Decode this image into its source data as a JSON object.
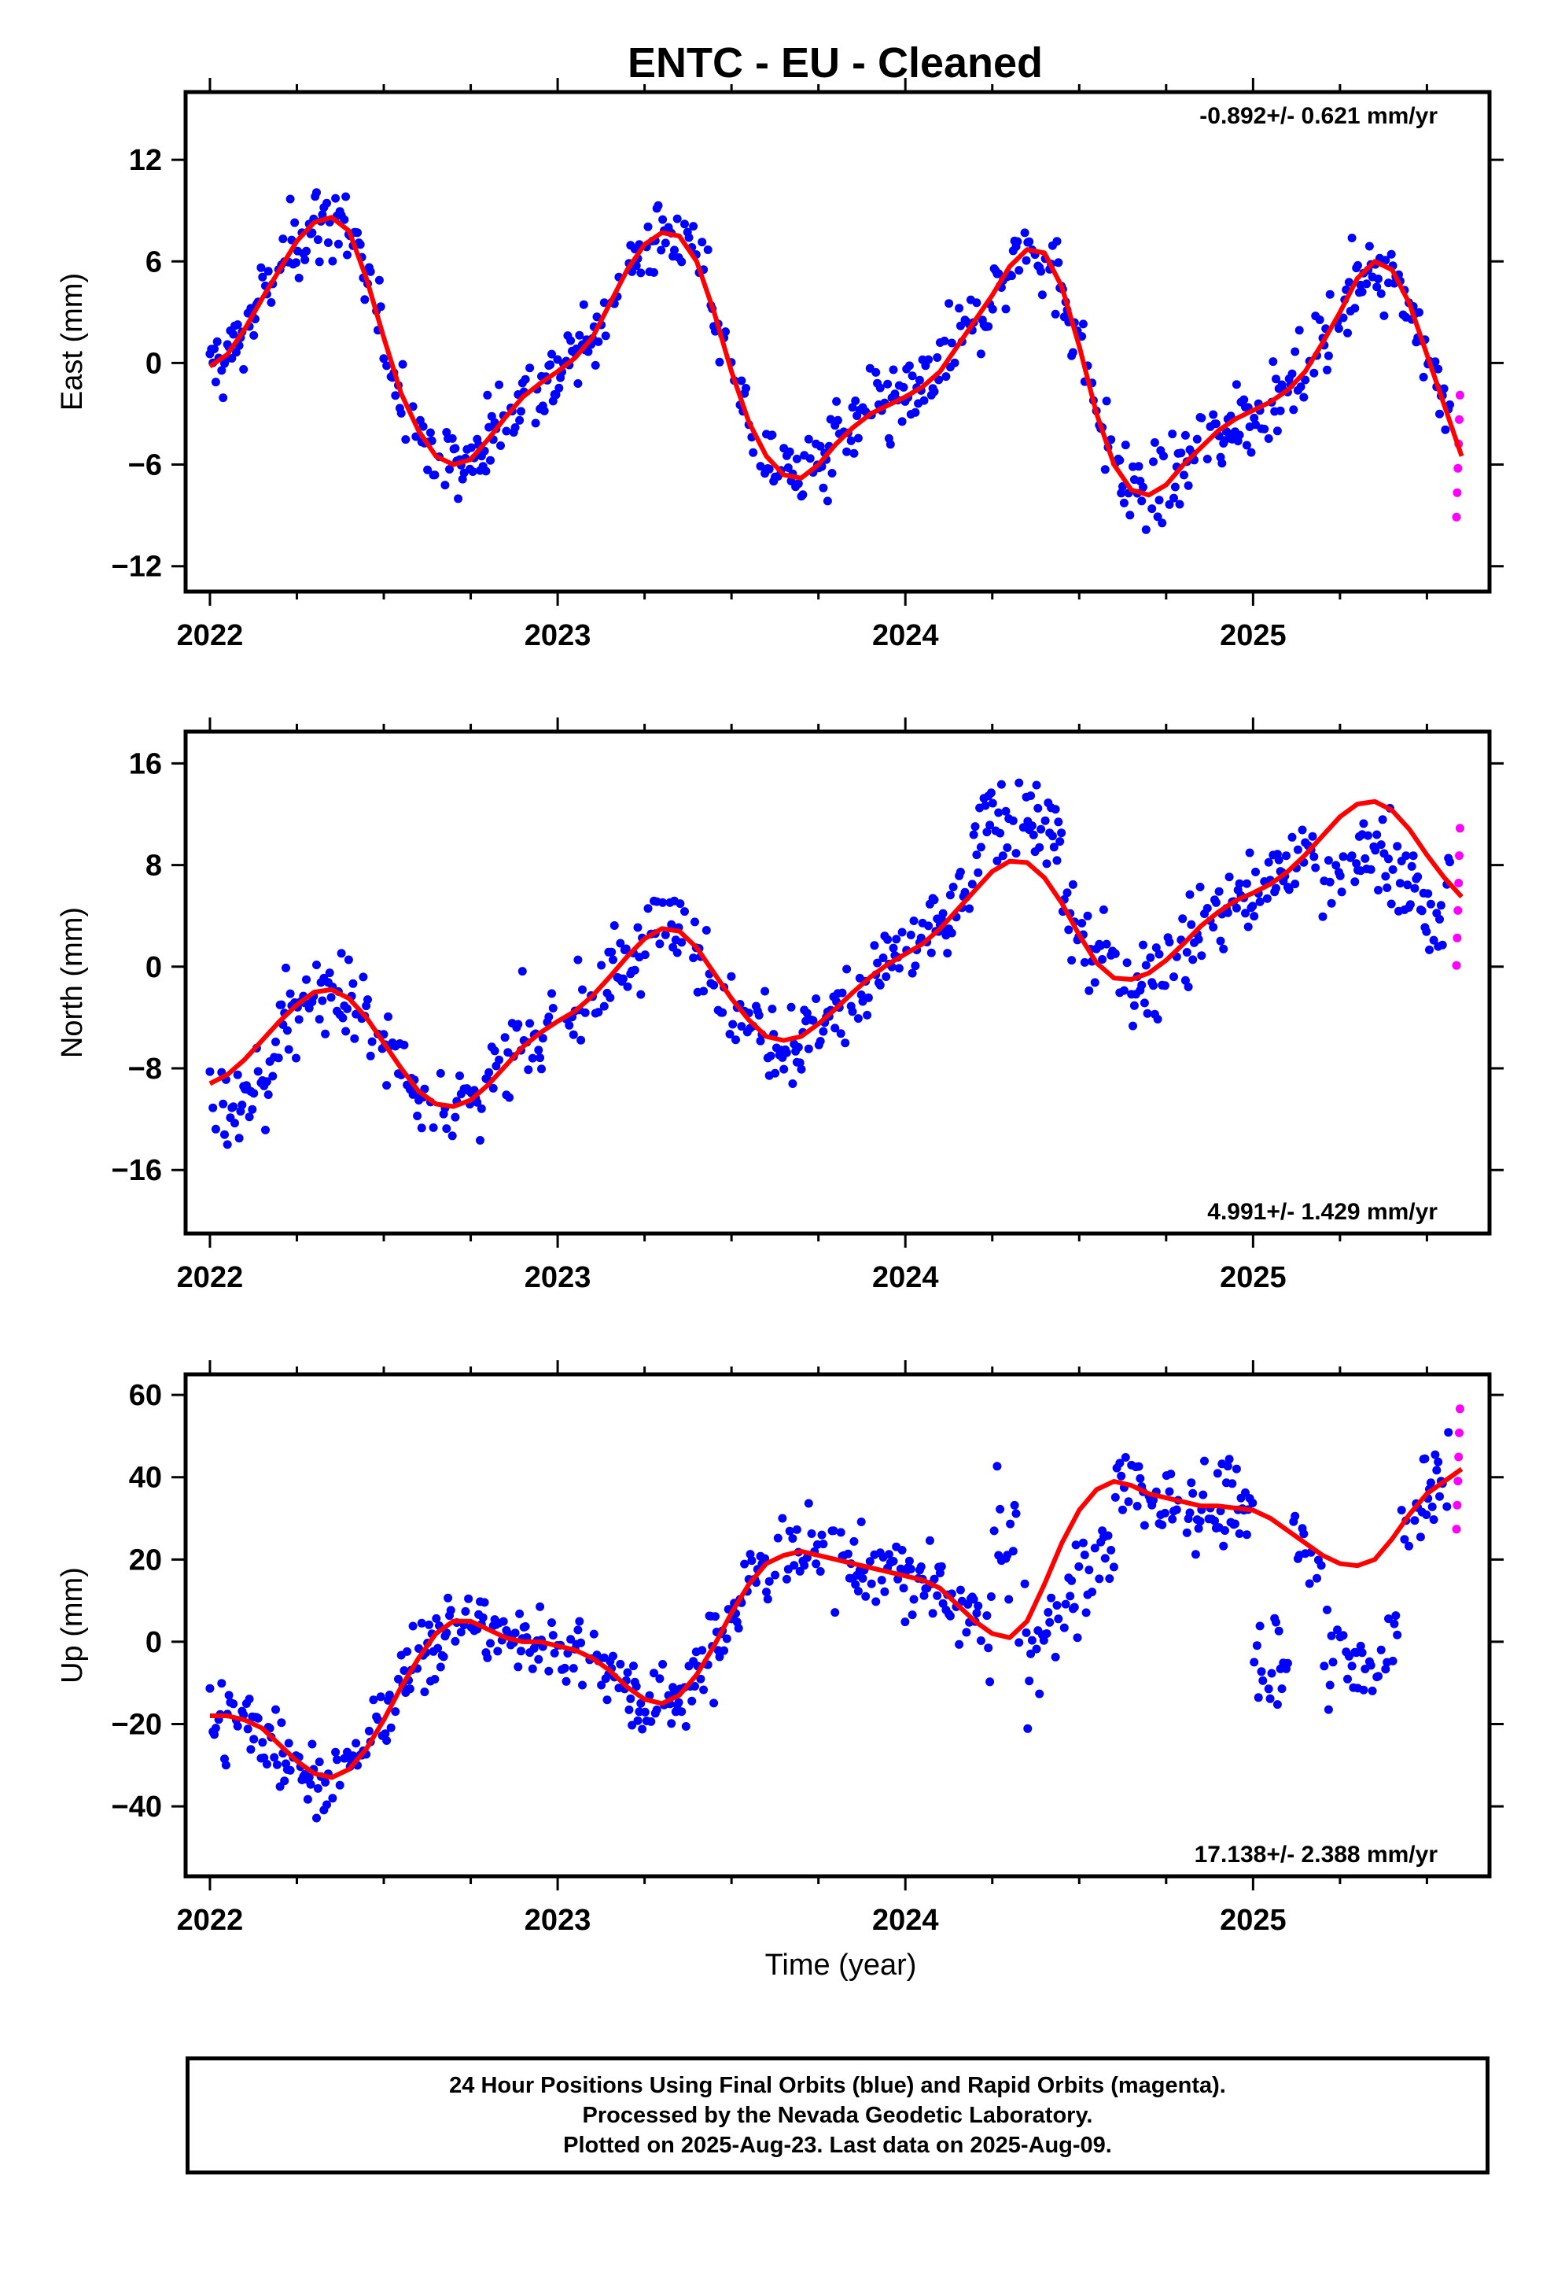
{
  "title": "ENTC  - EU - Cleaned",
  "chart_data": [
    {
      "type": "scatter",
      "name": "east",
      "ylabel": "East (mm)",
      "xlabel": "",
      "xlim": [
        2021.93,
        2025.68
      ],
      "ylim": [
        -13.5,
        16.0
      ],
      "xticks": [
        2022,
        2023,
        2024,
        2025
      ],
      "yticks": [
        -12,
        -6,
        0,
        6,
        12
      ],
      "rate_text": "-0.892+/- 0.621 mm/yr",
      "rate_position": "top-right",
      "fit_curve": {
        "x": [
          2022.0,
          2022.05,
          2022.1,
          2022.15,
          2022.2,
          2022.25,
          2022.3,
          2022.35,
          2022.4,
          2022.45,
          2022.5,
          2022.55,
          2022.6,
          2022.65,
          2022.7,
          2022.75,
          2022.8,
          2022.85,
          2022.9,
          2022.95,
          2023.0,
          2023.05,
          2023.1,
          2023.15,
          2023.2,
          2023.25,
          2023.3,
          2023.35,
          2023.4,
          2023.45,
          2023.5,
          2023.55,
          2023.6,
          2023.65,
          2023.7,
          2023.75,
          2023.8,
          2023.85,
          2023.9,
          2023.95,
          2024.0,
          2024.05,
          2024.1,
          2024.15,
          2024.2,
          2024.25,
          2024.3,
          2024.35,
          2024.4,
          2024.45,
          2024.5,
          2024.55,
          2024.6,
          2024.65,
          2024.7,
          2024.75,
          2024.8,
          2024.85,
          2024.9,
          2024.95,
          2025.0,
          2025.05,
          2025.1,
          2025.15,
          2025.2,
          2025.25,
          2025.3,
          2025.35,
          2025.4,
          2025.45,
          2025.5,
          2025.55,
          2025.6
        ],
        "y": [
          -0.2,
          0.5,
          2.0,
          3.8,
          5.5,
          7.2,
          8.3,
          8.6,
          7.8,
          5.0,
          1.5,
          -1.8,
          -4.0,
          -5.5,
          -6.0,
          -5.7,
          -4.5,
          -3.2,
          -2.0,
          -1.2,
          -0.5,
          0.3,
          1.5,
          3.5,
          5.5,
          7.0,
          7.7,
          7.5,
          6.0,
          3.0,
          -0.5,
          -3.5,
          -5.5,
          -6.6,
          -6.8,
          -6.0,
          -4.8,
          -3.8,
          -3.0,
          -2.5,
          -2.0,
          -1.4,
          -0.5,
          1.0,
          2.5,
          4.0,
          5.7,
          6.7,
          6.5,
          4.5,
          1.0,
          -3.0,
          -6.0,
          -7.5,
          -7.8,
          -7.2,
          -6.0,
          -5.0,
          -4.0,
          -3.3,
          -2.8,
          -2.3,
          -1.6,
          -0.5,
          1.2,
          3.0,
          5.0,
          6.0,
          5.5,
          3.5,
          0.5,
          -2.5,
          -5.5
        ]
      }
    },
    {
      "type": "scatter",
      "name": "north",
      "ylabel": "North (mm)",
      "xlabel": "",
      "xlim": [
        2021.93,
        2025.68
      ],
      "ylim": [
        -21.0,
        18.5
      ],
      "xticks": [
        2022,
        2023,
        2024,
        2025
      ],
      "yticks": [
        -16,
        -8,
        0,
        8,
        16
      ],
      "rate_text": "4.991+/- 1.429 mm/yr",
      "rate_position": "bottom-right",
      "fit_curve": {
        "x": [
          2022.0,
          2022.05,
          2022.1,
          2022.15,
          2022.2,
          2022.25,
          2022.3,
          2022.35,
          2022.4,
          2022.45,
          2022.5,
          2022.55,
          2022.6,
          2022.65,
          2022.7,
          2022.75,
          2022.8,
          2022.85,
          2022.9,
          2022.95,
          2023.0,
          2023.05,
          2023.1,
          2023.15,
          2023.2,
          2023.25,
          2023.3,
          2023.35,
          2023.4,
          2023.45,
          2023.5,
          2023.55,
          2023.6,
          2023.65,
          2023.7,
          2023.75,
          2023.8,
          2023.85,
          2023.9,
          2023.95,
          2024.0,
          2024.05,
          2024.1,
          2024.15,
          2024.2,
          2024.25,
          2024.3,
          2024.35,
          2024.4,
          2024.45,
          2024.5,
          2024.55,
          2024.6,
          2024.65,
          2024.7,
          2024.75,
          2024.8,
          2024.85,
          2024.9,
          2024.95,
          2025.0,
          2025.05,
          2025.1,
          2025.15,
          2025.2,
          2025.25,
          2025.3,
          2025.35,
          2025.4,
          2025.45,
          2025.5,
          2025.55,
          2025.6
        ],
        "y": [
          -9.2,
          -8.5,
          -7.3,
          -5.8,
          -4.3,
          -3.0,
          -2.0,
          -1.8,
          -2.5,
          -4.0,
          -6.0,
          -8.0,
          -9.8,
          -10.8,
          -11.0,
          -10.5,
          -9.3,
          -7.8,
          -6.3,
          -5.2,
          -4.3,
          -3.5,
          -2.3,
          -0.8,
          0.8,
          2.2,
          3.0,
          2.8,
          1.5,
          -0.5,
          -2.5,
          -4.2,
          -5.5,
          -5.8,
          -5.5,
          -4.5,
          -3.3,
          -2.0,
          -0.8,
          0.2,
          1.0,
          1.8,
          3.0,
          4.5,
          6.0,
          7.5,
          8.3,
          8.2,
          7.0,
          5.0,
          2.5,
          0.3,
          -0.9,
          -1.0,
          -0.5,
          0.5,
          1.8,
          3.2,
          4.3,
          5.2,
          5.8,
          6.5,
          7.5,
          8.8,
          10.3,
          11.8,
          12.8,
          13.0,
          12.3,
          10.8,
          8.8,
          7.0,
          5.5
        ]
      }
    },
    {
      "type": "scatter",
      "name": "up",
      "ylabel": "Up (mm)",
      "xlabel": "Time (year)",
      "xlim": [
        2021.93,
        2025.68
      ],
      "ylim": [
        -57.0,
        65.0
      ],
      "xticks": [
        2022,
        2023,
        2024,
        2025
      ],
      "yticks": [
        -40,
        -20,
        0,
        20,
        40,
        60
      ],
      "rate_text": "17.138+/- 2.388 mm/yr",
      "rate_position": "bottom-right",
      "fit_curve": {
        "x": [
          2022.0,
          2022.05,
          2022.1,
          2022.15,
          2022.2,
          2022.25,
          2022.3,
          2022.35,
          2022.4,
          2022.45,
          2022.5,
          2022.55,
          2022.6,
          2022.65,
          2022.7,
          2022.75,
          2022.8,
          2022.85,
          2022.9,
          2022.95,
          2023.0,
          2023.05,
          2023.1,
          2023.15,
          2023.2,
          2023.25,
          2023.3,
          2023.35,
          2023.4,
          2023.45,
          2023.5,
          2023.55,
          2023.6,
          2023.65,
          2023.7,
          2023.75,
          2023.8,
          2023.85,
          2023.9,
          2023.95,
          2024.0,
          2024.05,
          2024.1,
          2024.15,
          2024.2,
          2024.25,
          2024.3,
          2024.35,
          2024.4,
          2024.45,
          2024.5,
          2024.55,
          2024.6,
          2024.65,
          2024.7,
          2024.75,
          2024.8,
          2024.85,
          2024.9,
          2024.95,
          2025.0,
          2025.05,
          2025.1,
          2025.15,
          2025.2,
          2025.25,
          2025.3,
          2025.35,
          2025.4,
          2025.45,
          2025.5,
          2025.55,
          2025.6
        ],
        "y": [
          -18,
          -18,
          -19,
          -21,
          -25,
          -29,
          -32,
          -33,
          -31,
          -26,
          -19,
          -11,
          -4,
          2,
          5,
          5,
          3,
          1,
          0,
          0,
          -1,
          -2,
          -4,
          -7,
          -11,
          -14,
          -15,
          -13,
          -8,
          -1,
          7,
          14,
          19,
          21,
          22,
          21,
          20,
          19,
          18,
          17,
          16,
          15,
          13,
          9,
          5,
          2,
          1,
          5,
          14,
          24,
          32,
          37,
          39,
          38,
          36,
          35,
          34,
          33,
          33,
          32.5,
          32,
          30,
          27,
          24,
          21,
          19,
          18.5,
          20,
          25,
          31,
          36,
          39,
          42
        ]
      }
    }
  ],
  "footer": {
    "line1": "24 Hour Positions Using Final Orbits (blue) and Rapid Orbits (magenta).",
    "line2": "Processed by the Nevada Geodetic Laboratory.",
    "line3": "Plotted on 2025-Aug-23. Last data on 2025-Aug-09."
  },
  "colors": {
    "final_orbits": "#0000ff",
    "rapid_orbits": "#ff00ff",
    "fit_curve": "#ff0000",
    "frame": "#000000"
  }
}
